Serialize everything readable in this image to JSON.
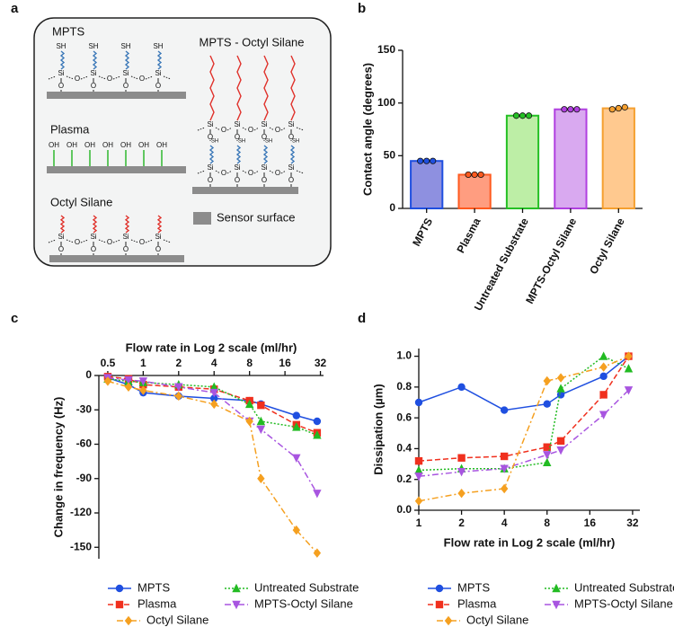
{
  "diagram": {
    "panel_label": "a",
    "titles": [
      "MPTS",
      "Plasma",
      "Octyl Silane",
      "MPTS - Octyl Silane"
    ],
    "legend": "Sensor surface",
    "atoms": {
      "sh": "SH",
      "si": "Si",
      "o": "O",
      "oh": "OH"
    }
  },
  "chart_data": [
    {
      "type": "bar",
      "panel_label": "b",
      "ylabel": "Contact angle (degrees)",
      "categories": [
        "MPTS",
        "Plasma",
        "Untreated Substrate",
        "MPTS-Octyl Silane",
        "Octyl Silane"
      ],
      "values": [
        45,
        32,
        88,
        94,
        95
      ],
      "points": [
        [
          45,
          45,
          45
        ],
        [
          32,
          32,
          32
        ],
        [
          88,
          88,
          88
        ],
        [
          94,
          94,
          94
        ],
        [
          94,
          95,
          96
        ]
      ],
      "colors": [
        "#8e90e0",
        "#ff9d80",
        "#bdeea6",
        "#d9a9f0",
        "#ffc98f"
      ],
      "edge_colors": [
        "#1f4fe0",
        "#ff5a1f",
        "#25c025",
        "#b040e0",
        "#f5a030"
      ],
      "ylim": [
        0,
        150
      ],
      "yticks": [
        0,
        50,
        100,
        150
      ]
    },
    {
      "type": "line",
      "panel_label": "c",
      "xlabel": "Flow rate in Log 2 scale (ml/hr)",
      "ylabel": "Change in frequency (Hz)",
      "xscale": "log2",
      "xaxis_position": "top",
      "x": [
        0.5,
        0.75,
        1,
        2,
        4,
        8,
        10,
        20,
        30
      ],
      "xlim": [
        0.42,
        34
      ],
      "xticks": [
        0.5,
        1,
        2,
        4,
        8,
        16,
        32
      ],
      "ylim": [
        -160,
        0
      ],
      "yticks": [
        0,
        -30,
        -60,
        -90,
        -120,
        -150
      ],
      "series": [
        {
          "name": "MPTS",
          "color": "#1f4fe0",
          "dash": "solid",
          "marker": "circle",
          "values": [
            -2,
            -8,
            -15,
            -18,
            -20,
            -22,
            -25,
            -35,
            -40
          ]
        },
        {
          "name": "Plasma",
          "color": "#f0301e",
          "dash": "dashed",
          "marker": "square",
          "values": [
            -1,
            -3,
            -8,
            -10,
            -12,
            -22,
            -26,
            -43,
            -50
          ]
        },
        {
          "name": "Untreated Substrate",
          "color": "#22bb22",
          "dash": "dotted",
          "marker": "triangle-up",
          "values": [
            -3,
            -5,
            -6,
            -8,
            -10,
            -25,
            -40,
            -45,
            -52
          ]
        },
        {
          "name": "MPTS-Octyl Silane",
          "color": "#a855e0",
          "dash": "dashdot",
          "marker": "triangle-down",
          "values": [
            -2,
            -4,
            -5,
            -10,
            -15,
            -40,
            -47,
            -72,
            -103
          ]
        },
        {
          "name": "Octyl Silane",
          "color": "#f5a020",
          "dash": "dashdot",
          "marker": "diamond",
          "values": [
            -5,
            -10,
            -13,
            -18,
            -25,
            -40,
            -90,
            -135,
            -155
          ]
        }
      ]
    },
    {
      "type": "line",
      "panel_label": "d",
      "xlabel": "Flow rate in Log 2 scale (ml/hr)",
      "ylabel": "Dissipation (µm)",
      "xscale": "log2",
      "xaxis_position": "bottom",
      "x": [
        1,
        2,
        4,
        8,
        10,
        20,
        30
      ],
      "xlim": [
        1,
        36
      ],
      "xticks": [
        1,
        2,
        4,
        8,
        16,
        32
      ],
      "ylim": [
        0,
        1.05
      ],
      "yticks": [
        {
          "value": 0,
          "label": "0.0"
        },
        0.2,
        0.4,
        0.6,
        0.8,
        {
          "value": 1,
          "label": "1.0"
        }
      ],
      "series": [
        {
          "name": "MPTS",
          "color": "#1f4fe0",
          "dash": "solid",
          "marker": "circle",
          "values": [
            0.7,
            0.8,
            0.65,
            0.69,
            0.75,
            0.87,
            1.0
          ]
        },
        {
          "name": "Plasma",
          "color": "#f0301e",
          "dash": "dashed",
          "marker": "square",
          "values": [
            0.32,
            0.34,
            0.35,
            0.41,
            0.45,
            0.75,
            1.0
          ]
        },
        {
          "name": "Untreated Substrate",
          "color": "#22bb22",
          "dash": "dotted",
          "marker": "triangle-up",
          "values": [
            0.26,
            0.27,
            0.27,
            0.31,
            0.79,
            1.0,
            0.92
          ]
        },
        {
          "name": "MPTS-Octyl Silane",
          "color": "#a855e0",
          "dash": "dashdot",
          "marker": "triangle-down",
          "values": [
            0.22,
            0.25,
            0.27,
            0.36,
            0.39,
            0.62,
            0.78
          ]
        },
        {
          "name": "Octyl Silane",
          "color": "#f5a020",
          "dash": "dashdot",
          "marker": "diamond",
          "values": [
            0.06,
            0.11,
            0.14,
            0.84,
            0.86,
            0.93,
            1.0
          ]
        }
      ]
    }
  ]
}
